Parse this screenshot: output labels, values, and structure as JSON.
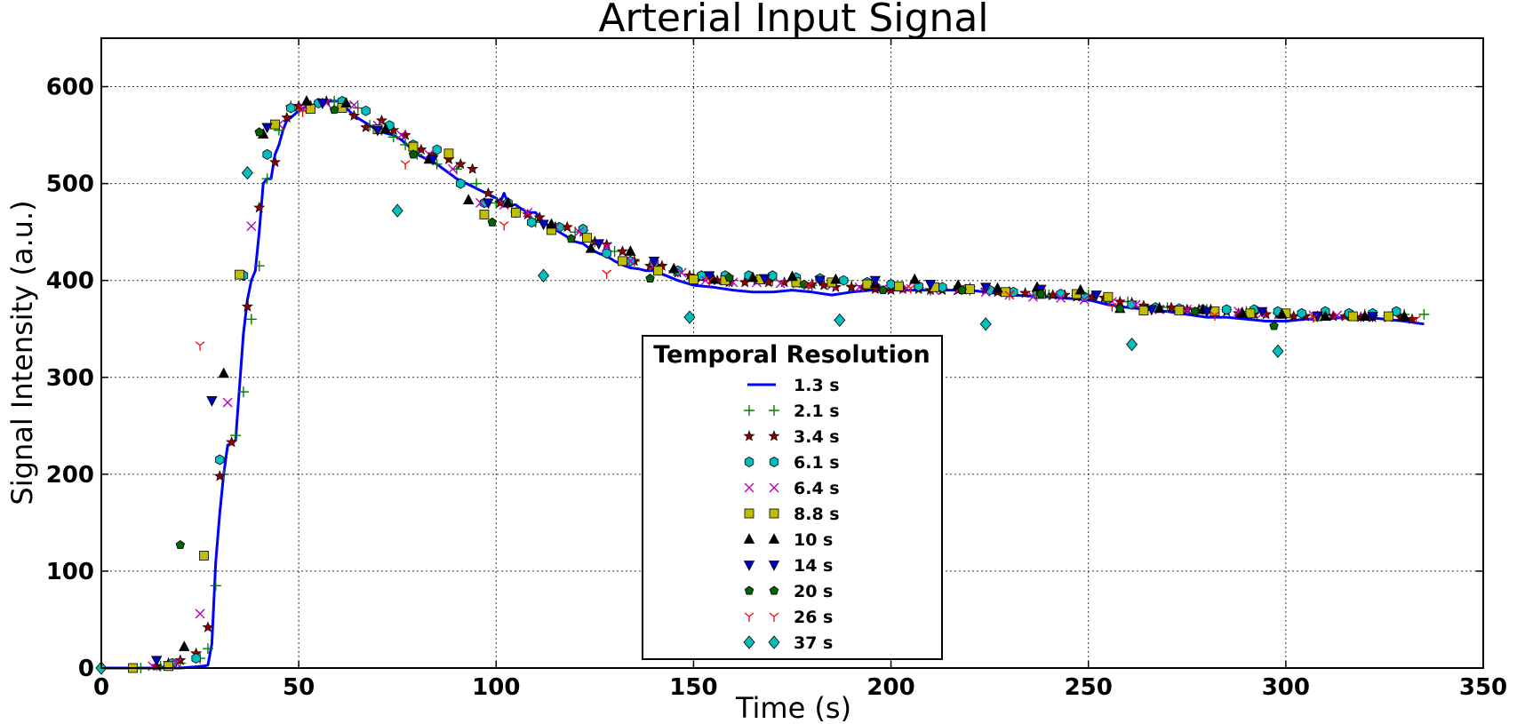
{
  "chart_data": {
    "type": "scatter",
    "title": "Arterial Input Signal",
    "xlabel": "Time (s)",
    "ylabel": "Signal Intensity (a.u.)",
    "xlim": [
      0,
      350
    ],
    "ylim": [
      0,
      650
    ],
    "xticks": [
      0,
      50,
      100,
      150,
      200,
      250,
      300,
      350
    ],
    "yticks": [
      0,
      100,
      200,
      300,
      400,
      500,
      600
    ],
    "grid": true,
    "legend": {
      "title": "Temporal Resolution",
      "placement": "bottom-center"
    },
    "series": [
      {
        "name": "1.3 s",
        "marker": "line",
        "color": "#0000ff",
        "x": [
          0,
          20,
          26,
          27,
          28,
          29,
          30,
          31,
          32,
          33,
          34,
          35,
          36,
          37,
          38,
          39,
          40,
          41,
          42,
          43,
          44,
          45,
          46,
          47,
          48,
          50,
          52,
          55,
          58,
          60,
          62,
          64,
          66,
          68,
          70,
          72,
          74,
          76,
          78,
          80,
          85,
          90,
          95,
          100,
          101,
          102,
          103,
          104,
          105,
          106,
          108,
          110,
          112,
          114,
          116,
          118,
          120,
          122,
          124,
          126,
          128,
          130,
          132,
          134,
          136,
          138,
          140,
          143,
          146,
          150,
          155,
          160,
          165,
          170,
          175,
          180,
          185,
          190,
          195,
          200,
          210,
          220,
          230,
          240,
          250,
          255,
          260,
          265,
          270,
          275,
          280,
          285,
          290,
          295,
          300,
          305,
          310,
          315,
          320,
          325,
          330,
          335
        ],
        "y": [
          0,
          0,
          2,
          3,
          25,
          110,
          160,
          200,
          230,
          232,
          235,
          290,
          345,
          380,
          400,
          410,
          450,
          500,
          505,
          505,
          530,
          540,
          555,
          565,
          568,
          575,
          580,
          582,
          585,
          585,
          578,
          570,
          565,
          560,
          555,
          552,
          550,
          545,
          538,
          530,
          520,
          505,
          495,
          485,
          480,
          490,
          480,
          478,
          478,
          475,
          470,
          470,
          460,
          455,
          450,
          445,
          440,
          438,
          432,
          428,
          425,
          420,
          416,
          413,
          412,
          410,
          410,
          405,
          400,
          395,
          393,
          390,
          388,
          388,
          390,
          388,
          385,
          388,
          390,
          390,
          390,
          390,
          385,
          383,
          380,
          375,
          372,
          370,
          368,
          365,
          362,
          362,
          360,
          358,
          358,
          360,
          360,
          362,
          362,
          360,
          358,
          355
        ]
      },
      {
        "name": "2.1 s",
        "marker": "plus",
        "color": "#008000",
        "x": [
          10,
          15,
          20,
          25,
          27,
          29,
          31,
          34,
          36,
          38,
          40,
          42,
          45,
          48,
          50,
          53,
          56,
          59,
          62,
          65,
          68,
          71,
          74,
          77,
          80,
          85,
          90,
          95,
          100,
          105,
          110,
          115,
          120,
          125,
          130,
          135,
          140,
          145,
          150,
          160,
          170,
          180,
          190,
          200,
          210,
          220,
          230,
          240,
          250,
          260,
          270,
          280,
          290,
          300,
          310,
          320,
          330,
          335
        ],
        "y": [
          0,
          2,
          5,
          10,
          20,
          85,
          200,
          240,
          285,
          360,
          415,
          505,
          555,
          580,
          575,
          580,
          583,
          585,
          583,
          578,
          560,
          555,
          548,
          540,
          530,
          520,
          515,
          500,
          480,
          470,
          460,
          455,
          450,
          440,
          430,
          420,
          415,
          410,
          405,
          400,
          400,
          395,
          395,
          395,
          390,
          390,
          388,
          385,
          385,
          378,
          372,
          370,
          368,
          365,
          365,
          365,
          365,
          365
        ]
      },
      {
        "name": "3.4 s",
        "marker": "star",
        "color": "#8b0000",
        "x": [
          14,
          17,
          20,
          24,
          27,
          30,
          33,
          37,
          40,
          44,
          47,
          50,
          53,
          57,
          61,
          64,
          67,
          71,
          74,
          77,
          81,
          84,
          88,
          91,
          94,
          98,
          101,
          105,
          108,
          111,
          115,
          118,
          122,
          125,
          128,
          132,
          135,
          139,
          142,
          146,
          149,
          152,
          156,
          159,
          163,
          166,
          169,
          173,
          176,
          180,
          183,
          186,
          190,
          193,
          196,
          200,
          203,
          207,
          210,
          213,
          217,
          220,
          224,
          227,
          230,
          234,
          237,
          241,
          244,
          247,
          251,
          254,
          258,
          261,
          264,
          268,
          271,
          275,
          278,
          281,
          285,
          288,
          292,
          295,
          298,
          302,
          305,
          309,
          312,
          315,
          319,
          322,
          326,
          329,
          332
        ],
        "y": [
          2,
          5,
          8,
          15,
          42,
          198,
          233,
          373,
          475,
          522,
          568,
          580,
          580,
          585,
          578,
          570,
          558,
          565,
          555,
          550,
          535,
          530,
          525,
          520,
          515,
          490,
          480,
          470,
          468,
          465,
          455,
          455,
          450,
          440,
          437,
          430,
          420,
          415,
          415,
          408,
          405,
          403,
          400,
          398,
          398,
          400,
          398,
          398,
          397,
          396,
          395,
          393,
          393,
          393,
          391,
          390,
          391,
          391,
          390,
          390,
          390,
          392,
          390,
          388,
          388,
          387,
          387,
          385,
          385,
          383,
          383,
          382,
          378,
          377,
          374,
          372,
          372,
          370,
          370,
          370,
          368,
          366,
          365,
          365,
          365,
          363,
          363,
          363,
          363,
          363,
          362,
          362,
          362,
          362,
          360
        ]
      },
      {
        "name": "6.1 s",
        "marker": "hexagon",
        "color": "#00bfbf",
        "x": [
          18,
          24,
          30,
          36,
          42,
          48,
          55,
          61,
          67,
          73,
          79,
          85,
          91,
          97,
          103,
          109,
          116,
          122,
          128,
          134,
          140,
          146,
          152,
          158,
          164,
          170,
          176,
          182,
          188,
          194,
          200,
          207,
          213,
          219,
          225,
          231,
          237,
          243,
          249,
          255,
          261,
          267,
          273,
          279,
          285,
          292,
          298,
          304,
          310,
          316,
          322,
          328
        ],
        "y": [
          5,
          10,
          215,
          405,
          530,
          578,
          583,
          585,
          575,
          560,
          540,
          535,
          500,
          480,
          480,
          460,
          455,
          453,
          428,
          420,
          418,
          410,
          405,
          405,
          405,
          405,
          403,
          402,
          400,
          398,
          396,
          394,
          393,
          391,
          390,
          388,
          386,
          386,
          383,
          381,
          375,
          372,
          371,
          370,
          370,
          370,
          368,
          366,
          368,
          366,
          366,
          368
        ]
      },
      {
        "name": "6.4 s",
        "marker": "x",
        "color": "#bf00bf",
        "x": [
          13,
          19,
          25,
          32,
          38,
          45,
          51,
          57,
          64,
          70,
          76,
          83,
          89,
          96,
          102,
          108,
          115,
          121,
          128,
          134,
          140,
          147,
          153,
          160,
          166,
          172,
          179,
          185,
          192,
          198,
          204,
          211,
          217,
          224,
          230,
          236,
          243,
          249,
          256,
          262,
          268,
          275,
          281,
          288,
          294,
          300,
          307,
          313,
          320,
          326
        ],
        "y": [
          2,
          5,
          56,
          274,
          456,
          561,
          577,
          583,
          581,
          560,
          550,
          530,
          515,
          480,
          478,
          470,
          455,
          450,
          435,
          420,
          415,
          408,
          400,
          398,
          398,
          397,
          395,
          395,
          393,
          392,
          392,
          390,
          390,
          388,
          385,
          383,
          382,
          380,
          378,
          375,
          370,
          370,
          368,
          368,
          366,
          366,
          364,
          364,
          362,
          362
        ]
      },
      {
        "name": "8.8 s",
        "marker": "square",
        "color": "#bfbf00",
        "x": [
          8,
          17,
          26,
          35,
          44,
          53,
          61,
          70,
          79,
          88,
          97,
          105,
          114,
          123,
          132,
          141,
          150,
          158,
          167,
          176,
          185,
          194,
          202,
          211,
          220,
          229,
          238,
          247,
          255,
          264,
          273,
          282,
          291,
          300,
          308,
          317,
          326
        ],
        "y": [
          0,
          2,
          116,
          406,
          561,
          577,
          578,
          556,
          538,
          531,
          468,
          470,
          452,
          444,
          420,
          410,
          401,
          400,
          401,
          398,
          398,
          396,
          394,
          393,
          391,
          388,
          386,
          386,
          383,
          369,
          369,
          368,
          366,
          366,
          363,
          363,
          363
        ]
      },
      {
        "name": "10 s",
        "marker": "triangle-up",
        "color": "#000000",
        "x": [
          21,
          31,
          41,
          52,
          62,
          72,
          83,
          93,
          103,
          114,
          124,
          134,
          145,
          155,
          165,
          175,
          186,
          196,
          206,
          217,
          227,
          237,
          248,
          258,
          268,
          279,
          289,
          299,
          310,
          320,
          330
        ],
        "y": [
          22,
          304,
          551,
          585,
          583,
          556,
          525,
          483,
          480,
          458,
          433,
          430,
          412,
          401,
          403,
          404,
          401,
          397,
          401,
          395,
          392,
          393,
          390,
          371,
          371,
          370,
          366,
          365,
          363,
          363,
          363
        ]
      },
      {
        "name": "14 s",
        "marker": "triangle-down",
        "color": "#0000bf",
        "x": [
          14,
          28,
          42,
          56,
          70,
          84,
          98,
          112,
          126,
          140,
          154,
          168,
          182,
          196,
          210,
          224,
          238,
          252,
          266,
          280,
          294,
          308,
          322
        ],
        "y": [
          8,
          276,
          558,
          583,
          555,
          525,
          480,
          458,
          438,
          420,
          405,
          402,
          400,
          400,
          396,
          393,
          391,
          385,
          370,
          368,
          368,
          363,
          363
        ]
      },
      {
        "name": "20 s",
        "marker": "pentagon",
        "color": "#006400",
        "x": [
          20,
          40,
          59,
          79,
          99,
          119,
          139,
          159,
          178,
          198,
          218,
          238,
          258,
          277,
          297
        ],
        "y": [
          127,
          553,
          576,
          530,
          460,
          443,
          402,
          403,
          396,
          390,
          390,
          386,
          371,
          368,
          353
        ]
      },
      {
        "name": "26 s",
        "marker": "tri-down",
        "color": "#ff0000",
        "x": [
          25,
          51,
          77,
          102,
          128,
          154,
          179,
          205,
          230,
          256,
          282,
          307,
          333
        ],
        "y": [
          333,
          574,
          520,
          457,
          407,
          400,
          395,
          392,
          385,
          373,
          364,
          362,
          360
        ]
      },
      {
        "name": "37 s",
        "marker": "diamond",
        "color": "#00bfbf",
        "x": [
          0,
          37,
          75,
          112,
          149,
          187,
          224,
          261,
          298
        ],
        "y": [
          0,
          511,
          472,
          405,
          362,
          359,
          355,
          334,
          327
        ]
      }
    ]
  }
}
